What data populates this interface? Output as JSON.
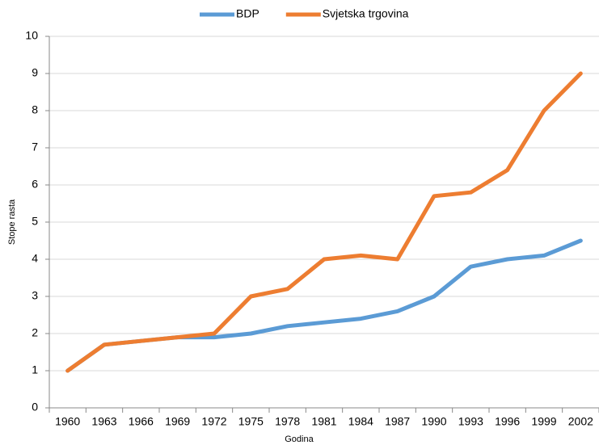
{
  "chart_data": {
    "type": "line",
    "x_label": "Godina",
    "y_label": "Stope rasta",
    "categories": [
      "1960",
      "1963",
      "1966",
      "1969",
      "1972",
      "1975",
      "1978",
      "1981",
      "1984",
      "1987",
      "1990",
      "1993",
      "1996",
      "1999",
      "2002"
    ],
    "series": [
      {
        "name": "BDP",
        "color": "#5b9bd5",
        "values": [
          1.0,
          1.7,
          1.8,
          1.9,
          1.9,
          2.0,
          2.2,
          2.3,
          2.4,
          2.6,
          3.0,
          3.8,
          4.0,
          4.1,
          4.5
        ]
      },
      {
        "name": "Svjetska trgovina",
        "color": "#ed7d31",
        "values": [
          1.0,
          1.7,
          1.8,
          1.9,
          2.0,
          3.0,
          3.2,
          4.0,
          4.1,
          4.0,
          5.7,
          5.8,
          6.4,
          8.0,
          9.0
        ]
      }
    ],
    "ylim": [
      0,
      10
    ],
    "yticks": [
      0,
      1,
      2,
      3,
      4,
      5,
      6,
      7,
      8,
      9,
      10
    ],
    "grid": true,
    "legend": "top"
  }
}
